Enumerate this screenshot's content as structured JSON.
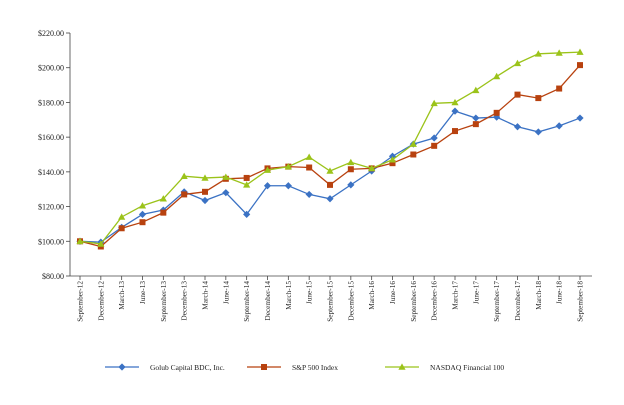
{
  "chart_data": {
    "type": "line",
    "categories": [
      "September-12",
      "December-12",
      "March-13",
      "June-13",
      "September-13",
      "December-13",
      "March-14",
      "June-14",
      "September-14",
      "December-14",
      "March-15",
      "June-15",
      "September-15",
      "December-15",
      "March-16",
      "June-16",
      "September-16",
      "December-16",
      "March-17",
      "June-17",
      "September-17",
      "December-17",
      "March-18",
      "June-18",
      "September-18"
    ],
    "ylim": [
      80,
      220
    ],
    "yticks": [
      "$80.00",
      "$100.00",
      "$120.00",
      "$140.00",
      "$160.00",
      "$180.00",
      "$200.00",
      "$220.00"
    ],
    "ytick_values": [
      80,
      100,
      120,
      140,
      160,
      180,
      200,
      220
    ],
    "grid": false,
    "legend_position": "bottom",
    "series": [
      {
        "name": "Golub Capital BDC, Inc.",
        "color": "#3b72c4",
        "marker": "diamond",
        "values": [
          100,
          99.5,
          108,
          115.5,
          118,
          128.5,
          123.5,
          128,
          115.5,
          132,
          132,
          127,
          124.5,
          132.5,
          140.5,
          149,
          156,
          159.5,
          175,
          171,
          171.5,
          166,
          163,
          166.5,
          171
        ]
      },
      {
        "name": "S&P 500 Index",
        "color": "#b8420f",
        "marker": "square",
        "values": [
          100,
          97,
          107.5,
          111,
          116.5,
          127,
          128.5,
          136,
          136.5,
          142,
          143,
          142.5,
          132.5,
          141.5,
          142,
          145,
          150,
          155,
          163.5,
          167.5,
          174,
          184.5,
          182.5,
          188,
          201.5
        ]
      },
      {
        "name": "NASDAQ Financial 100",
        "color": "#9bc31a",
        "marker": "triangle",
        "values": [
          100,
          98.5,
          114,
          120.5,
          124.5,
          137.5,
          136.5,
          137,
          132.5,
          141,
          143,
          148.5,
          140.5,
          145.5,
          142,
          147,
          156,
          179.5,
          180,
          187,
          195,
          202.5,
          208,
          208.5,
          209
        ]
      }
    ]
  }
}
